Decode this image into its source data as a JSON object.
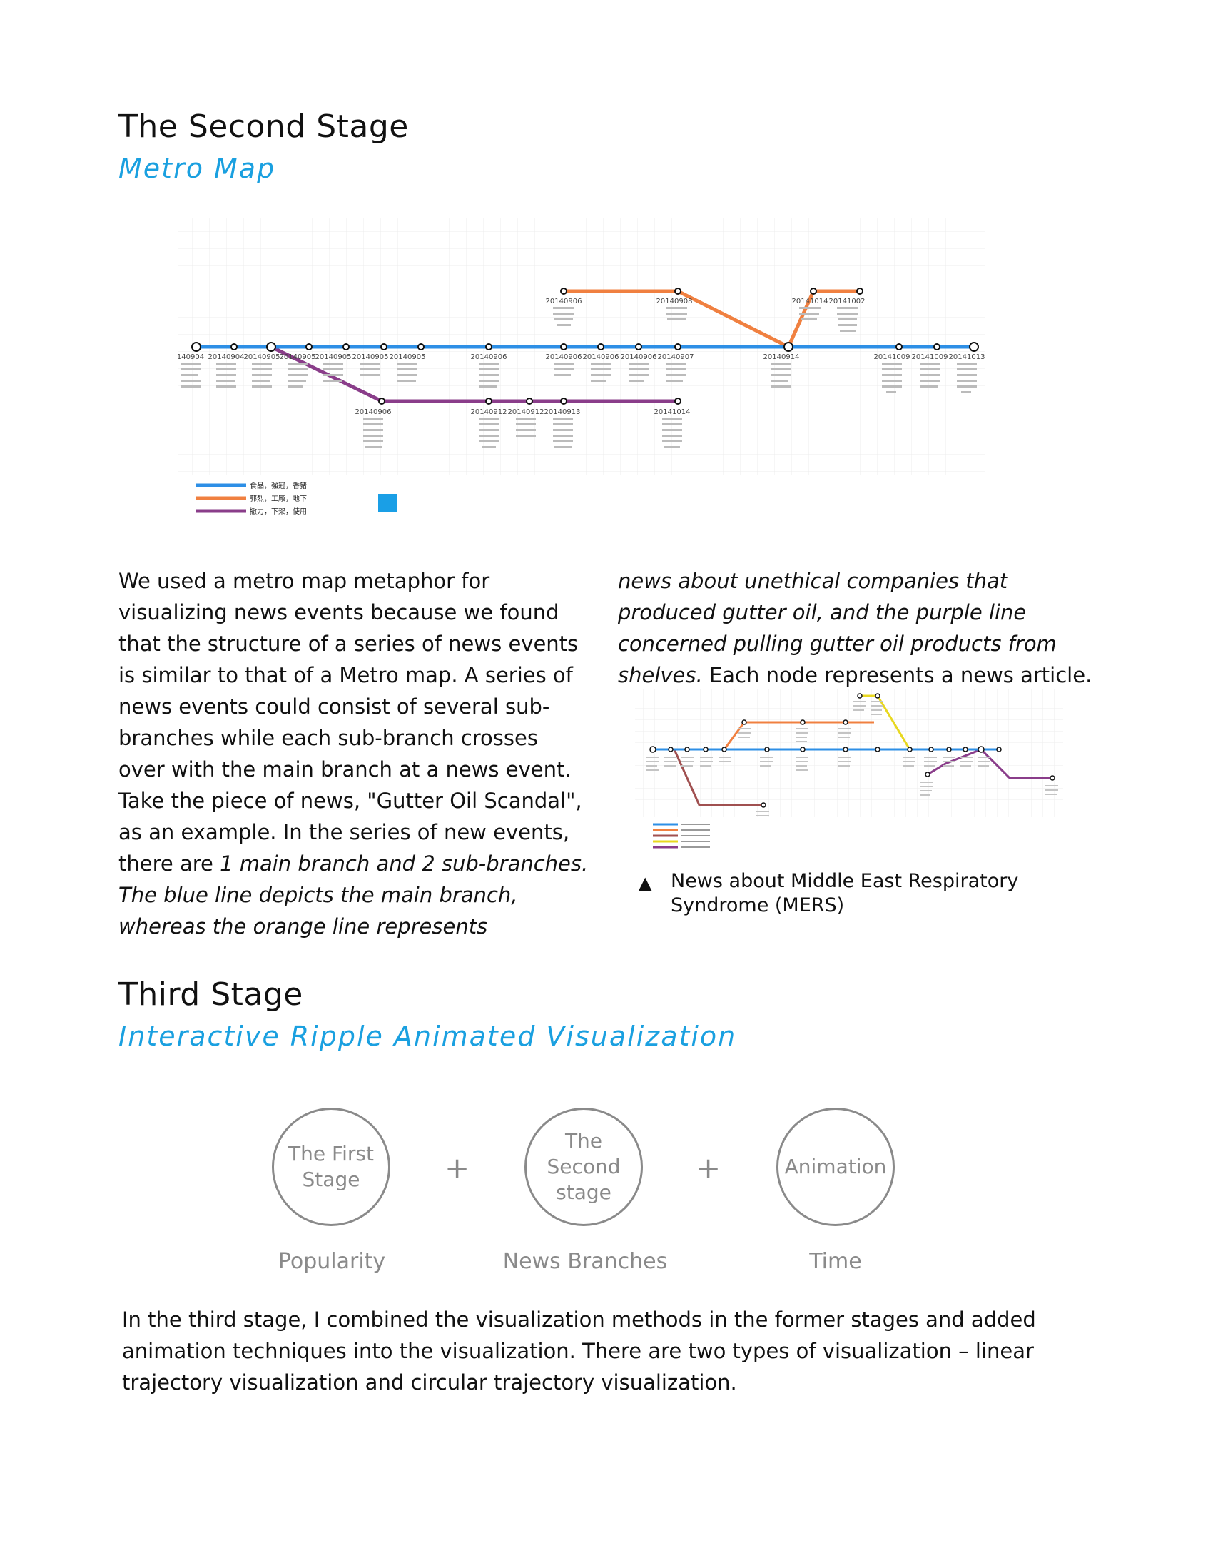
{
  "section2": {
    "title": "The Second Stage",
    "subtitle": "Metro Map"
  },
  "metro_figure": {
    "legend": [
      "食品，強冠，香豬",
      "郭烈，工廠，地下",
      "撤力，下架，使用"
    ],
    "colors": {
      "blue": "#2d8fe6",
      "orange": "#f08040",
      "purple": "#8a3d8a"
    },
    "top_labels": [
      "20140906",
      "20140908",
      "20141014",
      "20141002"
    ],
    "main_labels": [
      "140904",
      "20140904",
      "20140905",
      "20140905",
      "20140905",
      "20140905",
      "20140905",
      "20140906",
      "20140906",
      "20140906",
      "20140906",
      "20140907",
      "20140914",
      "20141009",
      "20141009",
      "20141013"
    ],
    "bottom_labels": [
      "20140906",
      "20140912",
      "20140912",
      "20140913",
      "20141014"
    ]
  },
  "body_left": {
    "p1": "We used a metro map metaphor for visualizing news events because we found that the structure of a series of news events is similar to that of a Metro map. A series of news events could consist of several sub-branches while each sub-branch crosses over with the main branch at a news event. Take the piece of news, \"Gutter Oil Scandal\", as an example. In the series of new events, there are ",
    "p1_italic": "1 main branch and 2 sub-branches. The blue line depicts the main branch, whereas the orange line represents"
  },
  "body_right": {
    "italic": "news about unethical companies that produced gutter oil, and the purple line concerned pulling gutter oil products from shelves.",
    "normal": " Each node represents a news article."
  },
  "mers_figure": {
    "caption_marker": "▲",
    "caption": "News about Middle East Respiratory Syndrome (MERS)",
    "colors": {
      "blue": "#2d8fe6",
      "orange": "#f08040",
      "yellow": "#e8d820",
      "brown": "#a05050",
      "purple": "#8a3d8a"
    }
  },
  "section3": {
    "title": "Third Stage",
    "subtitle": "Interactive Ripple Animated Visualization"
  },
  "diagram": {
    "circles": [
      "The First Stage",
      "The Second stage",
      "Animation"
    ],
    "plus": "+",
    "labels": [
      "Popularity",
      "News Branches",
      "Time"
    ]
  },
  "body_bottom": "In the third stage, I combined the visualization methods in the former stages and added animation techniques into the visualization. There are two types of visualization – linear trajectory visualization and circular trajectory visualization."
}
